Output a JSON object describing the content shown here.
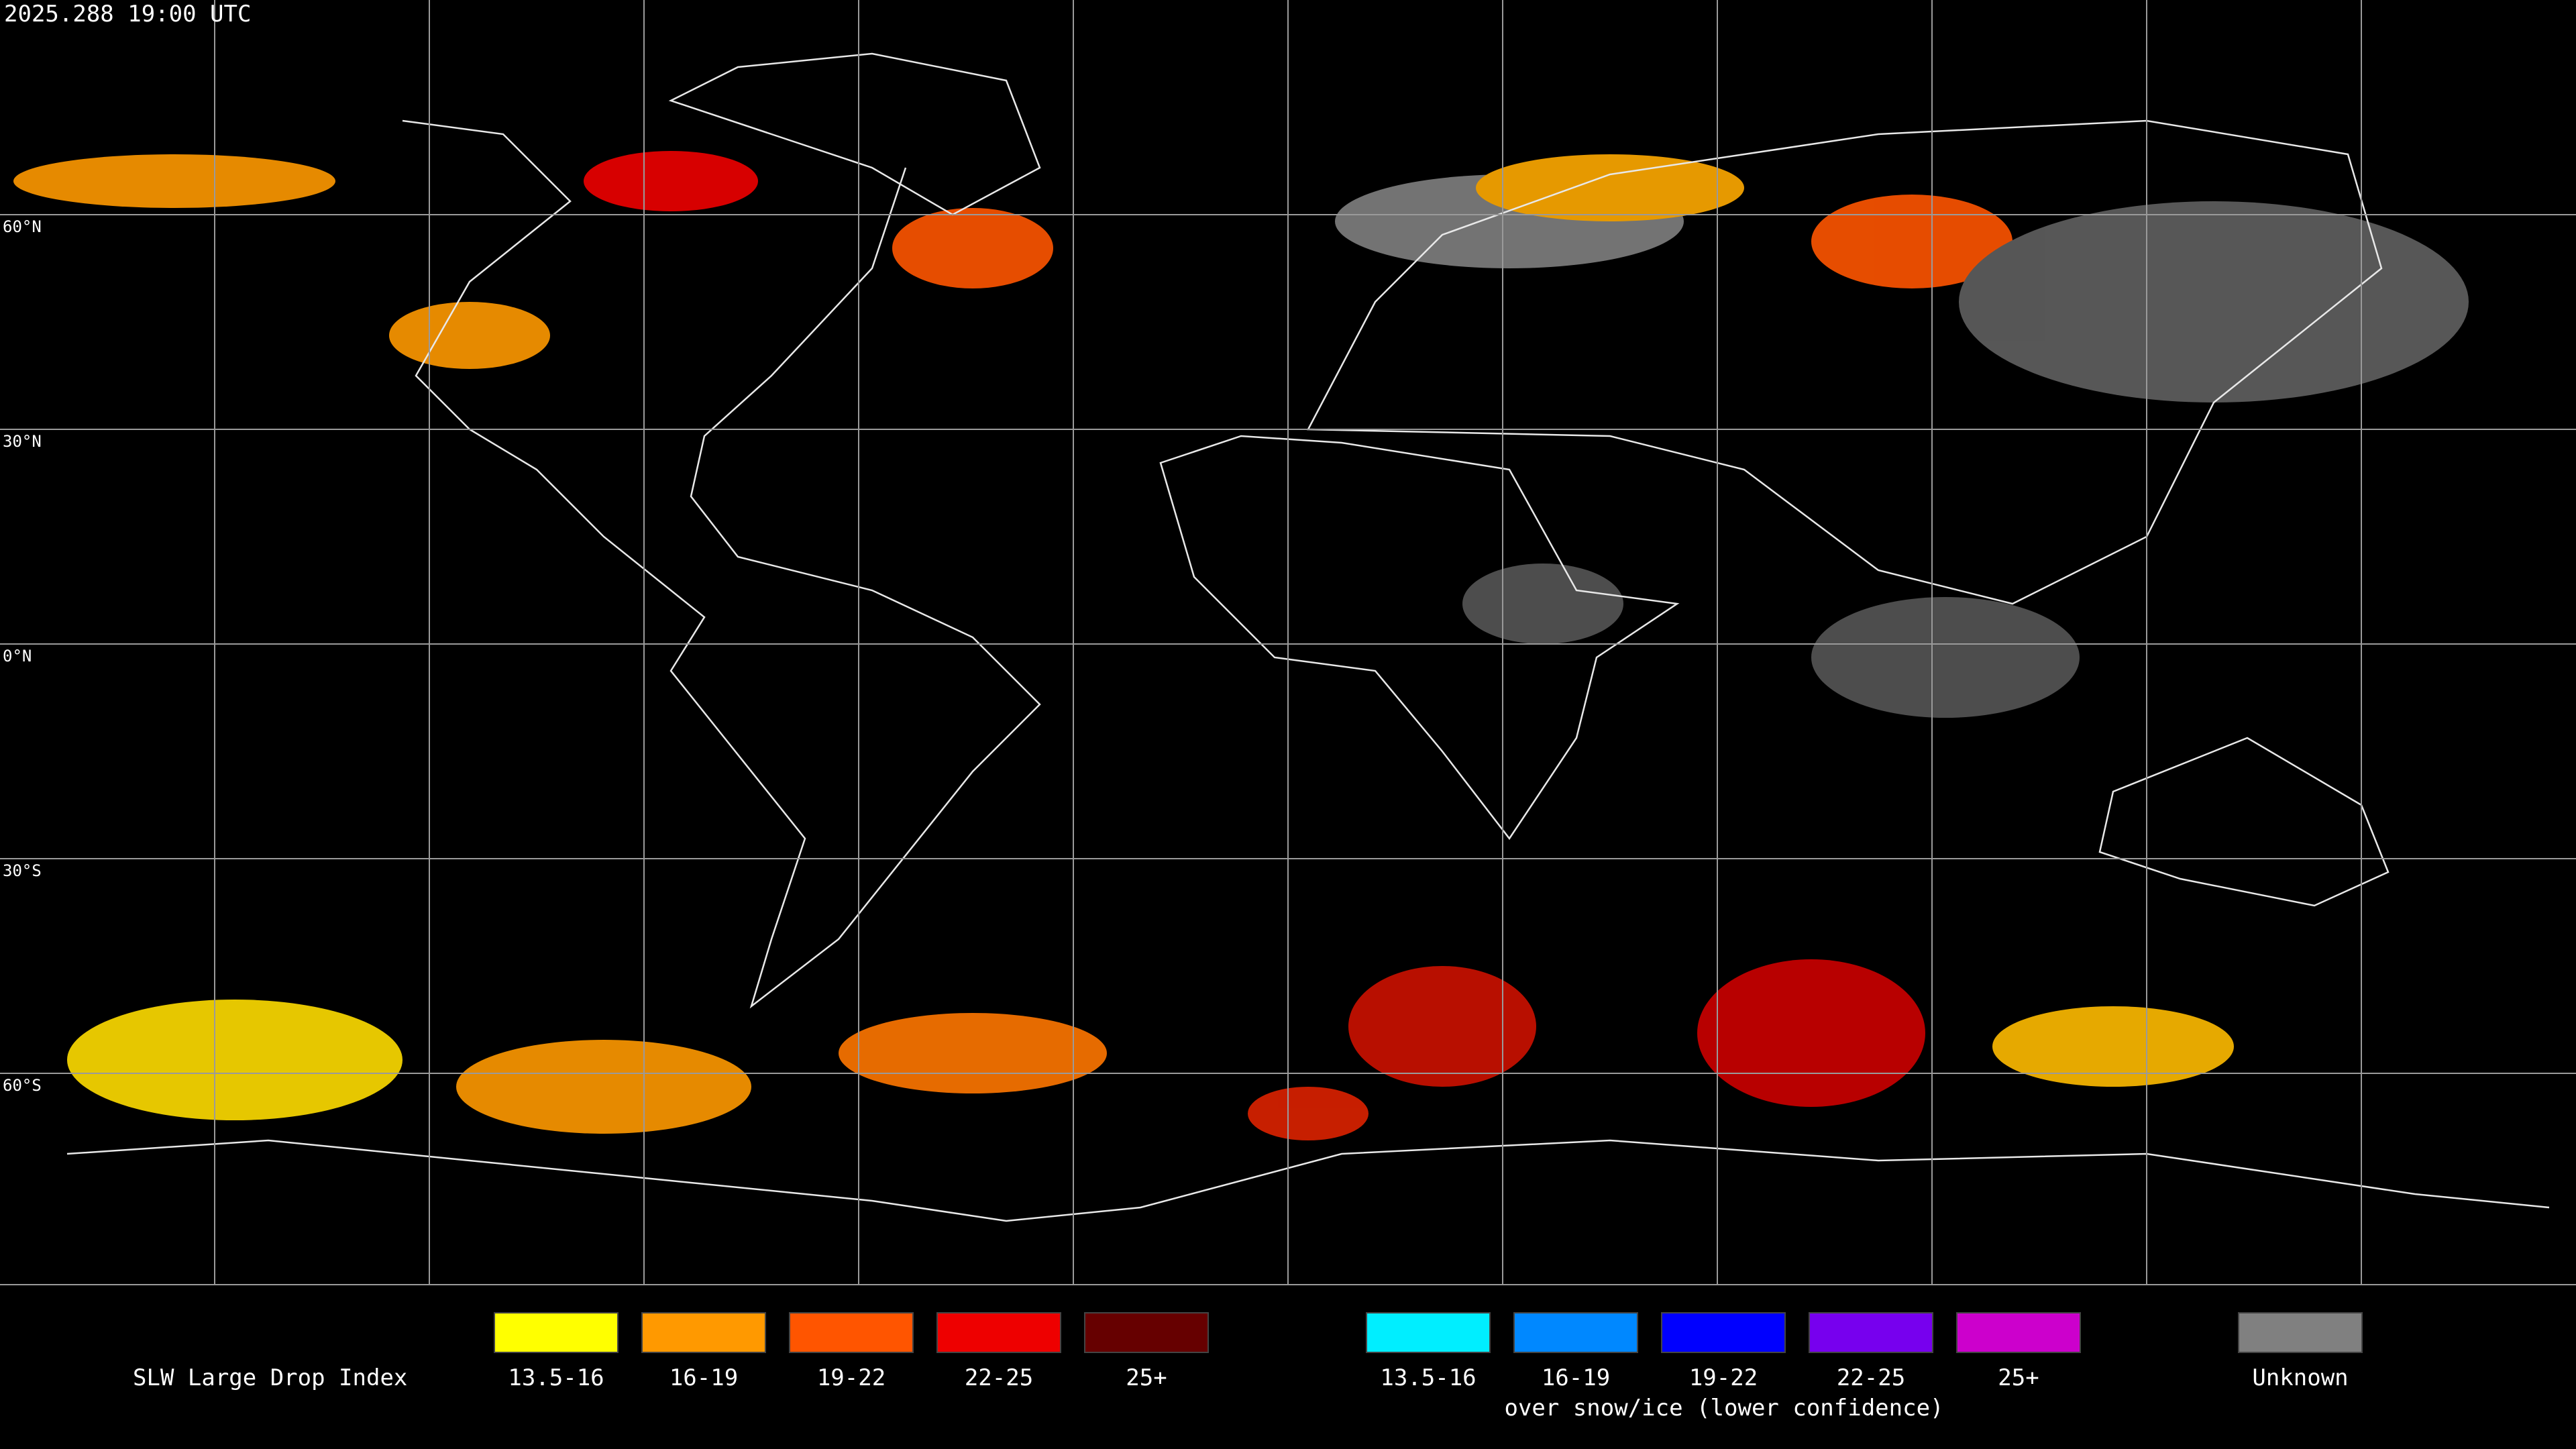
{
  "timestamp": "2025.288 19:00 UTC",
  "latitude_labels": [
    "60°N",
    "30°N",
    "0°N",
    "30°S",
    "60°S"
  ],
  "legend": {
    "title": "SLW Large Drop Index",
    "items": [
      {
        "label": "13.5-16",
        "color": "#ffff00"
      },
      {
        "label": "16-19",
        "color": "#ff9900"
      },
      {
        "label": "19-22",
        "color": "#ff5500"
      },
      {
        "label": "22-25",
        "color": "#ee0000"
      },
      {
        "label": "25+",
        "color": "#660000"
      }
    ],
    "snow_items": [
      {
        "label": "13.5-16",
        "color": "#00eeff"
      },
      {
        "label": "16-19",
        "color": "#0088ff"
      },
      {
        "label": "19-22",
        "color": "#0000ff"
      },
      {
        "label": "22-25",
        "color": "#7700ee"
      },
      {
        "label": "25+",
        "color": "#cc00cc"
      }
    ],
    "snow_caption": "over snow/ice (lower confidence)",
    "unknown": {
      "label": "Unknown",
      "color": "#808080"
    }
  }
}
